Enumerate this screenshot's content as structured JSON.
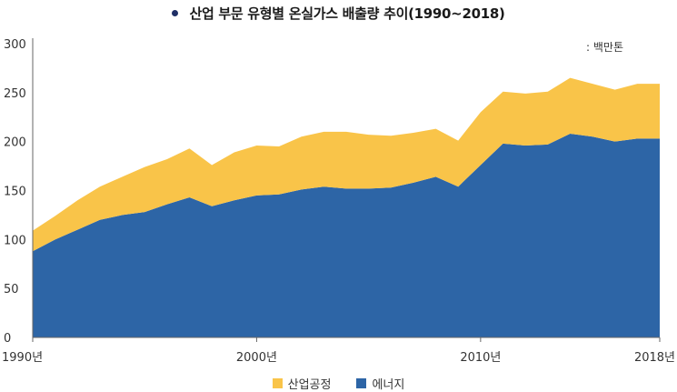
{
  "title": "산업 부문 유형별 온실가스 배출량 추이(1990~2018)",
  "colors": {
    "industrial": "#f9c449",
    "energy": "#2d65a6",
    "title_dot": "#1f2f66",
    "axis": "#666666"
  },
  "chart_data": {
    "type": "area",
    "stacked": true,
    "title": "산업 부문 유형별 온실가스 배출량 추이(1990~2018)",
    "unit_label": ": 백만톤",
    "x": [
      1990,
      1991,
      1992,
      1993,
      1994,
      1995,
      1996,
      1997,
      1998,
      1999,
      2000,
      2001,
      2002,
      2003,
      2004,
      2005,
      2006,
      2007,
      2008,
      2009,
      2010,
      2011,
      2012,
      2013,
      2014,
      2015,
      2016,
      2017,
      2018
    ],
    "xlim": [
      1990,
      2018
    ],
    "x_tick_labels": [
      {
        "x": 1990,
        "label": "1990년"
      },
      {
        "x": 2000,
        "label": "2000년"
      },
      {
        "x": 2010,
        "label": "2010년"
      },
      {
        "x": 2018,
        "label": "2018년"
      }
    ],
    "ylim": [
      0,
      300
    ],
    "y_ticks": [
      0,
      50,
      100,
      150,
      200,
      250,
      300
    ],
    "grid": false,
    "legend_position": "bottom",
    "series": [
      {
        "name": "에너지",
        "color": "#2d65a6",
        "values": [
          88,
          100,
          110,
          120,
          125,
          128,
          136,
          143,
          134,
          140,
          145,
          146,
          151,
          154,
          152,
          152,
          153,
          158,
          164,
          154,
          176,
          198,
          196,
          197,
          208,
          205,
          200,
          203,
          203
        ]
      },
      {
        "name": "산업공정",
        "color": "#f9c449",
        "values": [
          21,
          24,
          30,
          34,
          39,
          46,
          46,
          50,
          42,
          49,
          51,
          49,
          54,
          56,
          58,
          55,
          53,
          51,
          49,
          47,
          54,
          53,
          53,
          54,
          57,
          54,
          53,
          56,
          56
        ]
      }
    ]
  },
  "legend": [
    {
      "label": "산업공정",
      "color": "#f9c449"
    },
    {
      "label": "에너지",
      "color": "#2d65a6"
    }
  ]
}
